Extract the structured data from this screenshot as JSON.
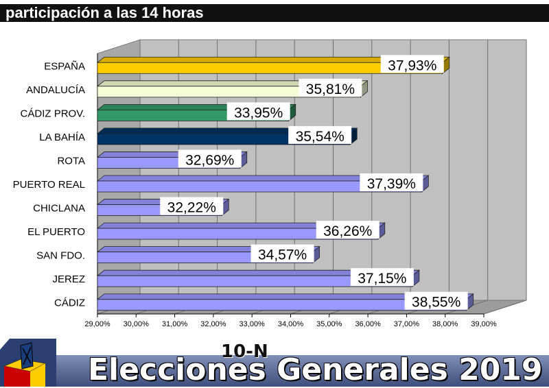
{
  "header": {
    "title": "participación a las 14 horas"
  },
  "chart_data": {
    "type": "bar",
    "orientation": "horizontal",
    "categories": [
      "ESPAÑA",
      "ANDALUCÍA",
      "CÁDIZ PROV.",
      "LA BAHÍA",
      "ROTA",
      "PUERTO REAL",
      "CHICLANA",
      "EL PUERTO",
      "SAN FDO.",
      "JEREZ",
      "CÁDIZ"
    ],
    "values": [
      37.93,
      35.81,
      33.95,
      35.54,
      32.69,
      37.39,
      32.22,
      36.26,
      34.57,
      37.15,
      38.55
    ],
    "value_labels": [
      "37,93%",
      "35,81%",
      "33,95%",
      "35,54%",
      "32,69%",
      "37,39%",
      "32,22%",
      "36,26%",
      "34,57%",
      "37,15%",
      "38,55%"
    ],
    "bar_colors": [
      "#ffcc00",
      "#f4ffd8",
      "#339966",
      "#003366",
      "#9999ff",
      "#9999ff",
      "#9999ff",
      "#9999ff",
      "#9999ff",
      "#9999ff",
      "#9999ff"
    ],
    "xlim": [
      29,
      39
    ],
    "x_ticks": [
      29,
      30,
      31,
      32,
      33,
      34,
      35,
      36,
      37,
      38,
      39
    ],
    "x_tick_labels": [
      "29,00%",
      "30,00%",
      "31,00%",
      "32,00%",
      "33,00%",
      "34,00%",
      "35,00%",
      "36,00%",
      "37,00%",
      "38,00%",
      "39,00%"
    ],
    "grid": true,
    "style": "3d",
    "plot_background": "#c0c0c0"
  },
  "footer": {
    "badge": "10-N",
    "title": "Elecciones Generales 2019"
  },
  "logo": {
    "icon": "ballot-box-icon",
    "colors": [
      "#cc0000",
      "#ffcc00",
      "#1a3d7c"
    ]
  }
}
